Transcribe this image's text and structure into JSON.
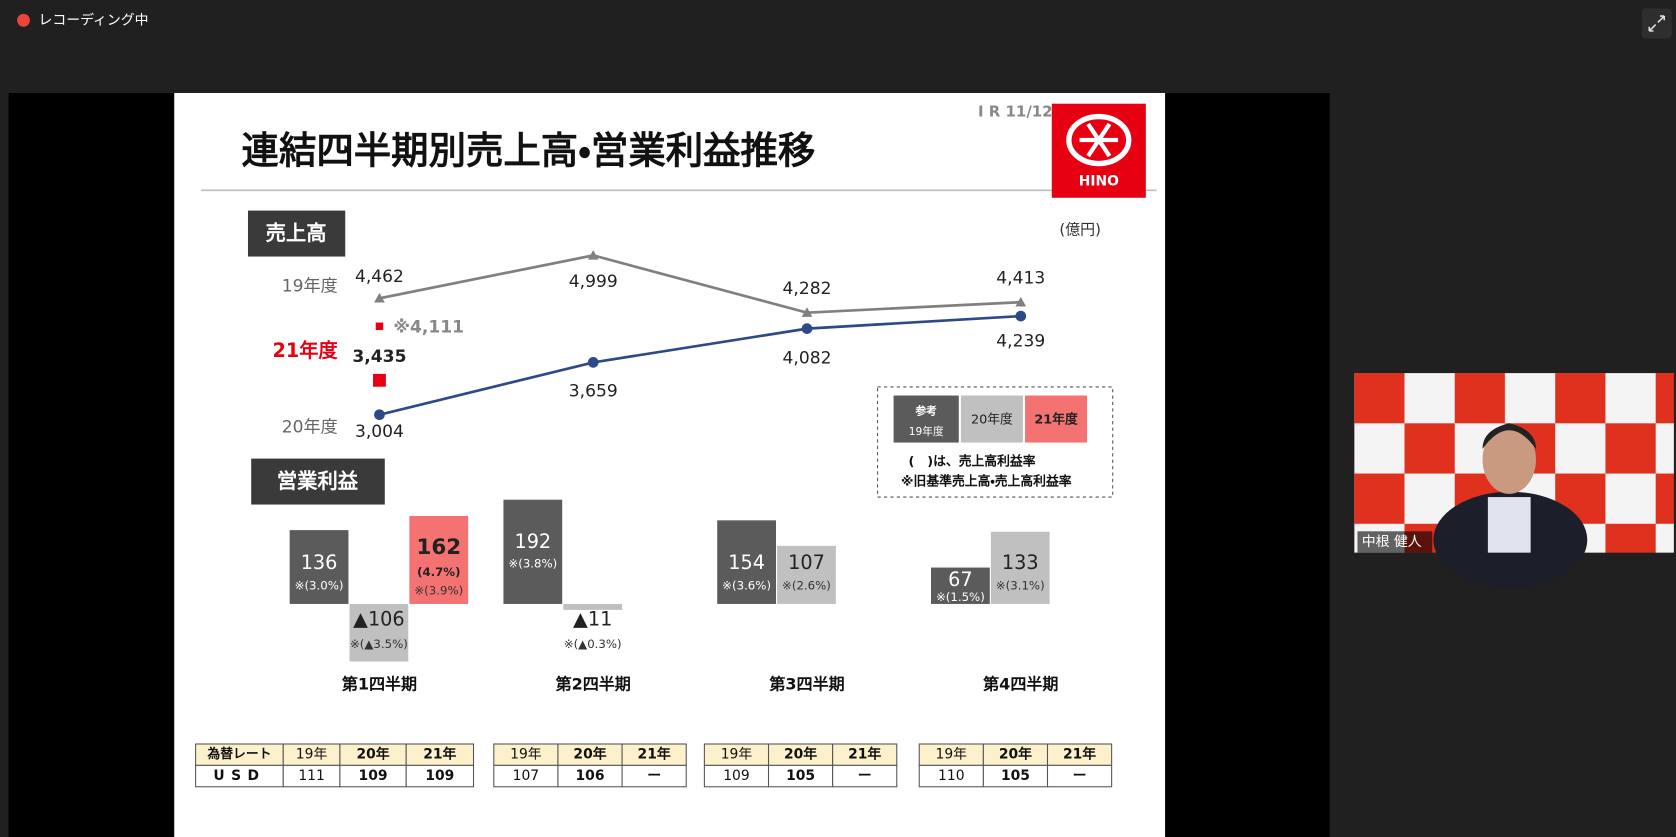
{
  "recording": "レコーディング中",
  "slide": {
    "page": "I R 11/12",
    "title": "連結四半期別売上高・営業利益推移",
    "logo": "HINO",
    "unit": "(億円)",
    "quarters": [
      "第1四半期",
      "第2四半期",
      "第3四半期",
      "第4四半期"
    ],
    "sales": {
      "label": "売上高",
      "ylim": [
        2800,
        5200
      ],
      "series": [
        {
          "name": "19年度",
          "color": "#808080",
          "values": [
            4462,
            4999,
            4282,
            4413
          ],
          "value_labels": [
            "4,462",
            "4,999",
            "4,282",
            "4,413"
          ]
        },
        {
          "name": "20年度",
          "color": "#2e4a86",
          "values": [
            3004,
            3659,
            4082,
            4239
          ],
          "value_labels": [
            "3,004",
            "3,659",
            "4,082",
            "4,239"
          ]
        },
        {
          "name": "21年度",
          "color": "#e60012",
          "values": [
            3435
          ],
          "value_labels": [
            "3,435"
          ]
        }
      ],
      "old_basis": {
        "value": 4111,
        "label": "※4,111"
      }
    },
    "legend": {
      "tag": "参考",
      "notes": [
        "(　)は、売上高利益率",
        "※旧基準売上高・売上高利益率"
      ]
    },
    "operating_income": {
      "label": "営業利益",
      "ylim": [
        -130,
        200
      ],
      "series": [
        {
          "color": "#5b5b5b",
          "values": [
            136,
            192,
            154,
            67
          ],
          "ratio_labels": [
            "※(3.0%)",
            "※(3.8%)",
            "※(3.6%)",
            "※(1.5%)"
          ]
        },
        {
          "color": "#c0c0c0",
          "values": [
            -106,
            -11,
            107,
            133
          ],
          "value_labels": [
            "▲106",
            "▲11",
            "107",
            "133"
          ],
          "ratio_labels": [
            "※(▲3.5%)",
            "※(▲0.3%)",
            "※(2.6%)",
            "※(3.1%)"
          ]
        },
        {
          "color": "#f47272",
          "values": [
            162
          ],
          "margin_labels": [
            "(4.7%)"
          ],
          "ratio_labels": [
            "※(3.9%)"
          ]
        }
      ]
    },
    "fx": {
      "label": "為替レート",
      "currency": "USD",
      "tables": [
        {
          "years": [
            "19年",
            "20年",
            "21年"
          ],
          "rates": [
            111,
            109,
            109
          ]
        },
        {
          "years": [
            "19年",
            "20年",
            "21年"
          ],
          "rates": [
            107,
            106,
            "ー"
          ]
        },
        {
          "years": [
            "19年",
            "20年",
            "21年"
          ],
          "rates": [
            109,
            105,
            "ー"
          ]
        },
        {
          "years": [
            "19年",
            "20年",
            "21年"
          ],
          "rates": [
            110,
            105,
            "ー"
          ]
        }
      ]
    }
  },
  "video": {
    "name": "中根 健人"
  }
}
